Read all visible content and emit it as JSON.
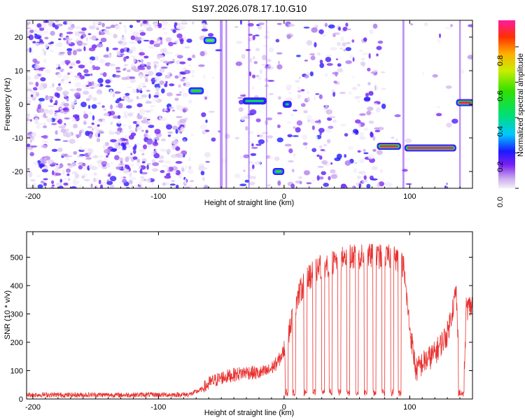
{
  "title": "S197.2026.078.17.10.G10",
  "chart_data": [
    {
      "type": "heatmap",
      "xlabel": "Height of straight line (km)",
      "ylabel": "Frequency (Hz)",
      "xlim": [
        -205,
        150
      ],
      "ylim": [
        -25,
        25
      ],
      "xticks": [
        -200,
        -100,
        0,
        100
      ],
      "yticks": [
        -20,
        -10,
        0,
        10,
        20
      ],
      "colorbar": {
        "label": "Normalized spectral amplitude",
        "range": [
          0,
          0.95
        ],
        "ticks": [
          0.0,
          0.2,
          0.4,
          0.6,
          0.8
        ]
      },
      "features": [
        {
          "x": [
            -75,
            -65
          ],
          "freq": 4,
          "amp": 0.55
        },
        {
          "x": [
            -63,
            -55
          ],
          "freq": 19,
          "amp": 0.6
        },
        {
          "x": [
            -32,
            -15
          ],
          "freq": 1,
          "amp": 0.45
        },
        {
          "x": [
            -8,
            -1
          ],
          "freq": -20,
          "amp": 0.55
        },
        {
          "x": [
            0,
            5
          ],
          "freq": 0,
          "amp": 0.45
        },
        {
          "x": [
            75,
            92
          ],
          "freq": -12.5,
          "amp": 0.9
        },
        {
          "x": [
            97,
            136
          ],
          "freq": -13,
          "amp": 0.95
        },
        {
          "x": [
            138,
            150
          ],
          "freq": 0.5,
          "amp": 0.9
        }
      ]
    },
    {
      "type": "line",
      "xlabel": "Height of straight line (km)",
      "ylabel": "SNR (10 * v/v)",
      "xlim": [
        -205,
        150
      ],
      "ylim": [
        0,
        590
      ],
      "xticks": [
        -200,
        -100,
        0,
        100
      ],
      "yticks": [
        0,
        100,
        200,
        300,
        400,
        500
      ],
      "color": "#e8312f",
      "x": [
        -205,
        -190,
        -170,
        -150,
        -130,
        -110,
        -90,
        -75,
        -65,
        -58,
        -50,
        -40,
        -30,
        -20,
        -12,
        -5,
        0,
        5,
        10,
        15,
        20,
        30,
        40,
        50,
        60,
        70,
        80,
        88,
        95,
        100,
        105,
        110,
        120,
        130,
        137,
        140,
        143,
        145,
        150
      ],
      "y": [
        15,
        15,
        14,
        15,
        14,
        15,
        15,
        16,
        35,
        60,
        75,
        85,
        95,
        90,
        100,
        130,
        170,
        260,
        350,
        400,
        430,
        470,
        480,
        500,
        500,
        505,
        500,
        500,
        470,
        250,
        100,
        125,
        160,
        230,
        380,
        25,
        15,
        320,
        330
      ],
      "dips": [
        2,
        8,
        17,
        24,
        31,
        37,
        44,
        51,
        58,
        65,
        72,
        79,
        86,
        92,
        140
      ]
    }
  ]
}
